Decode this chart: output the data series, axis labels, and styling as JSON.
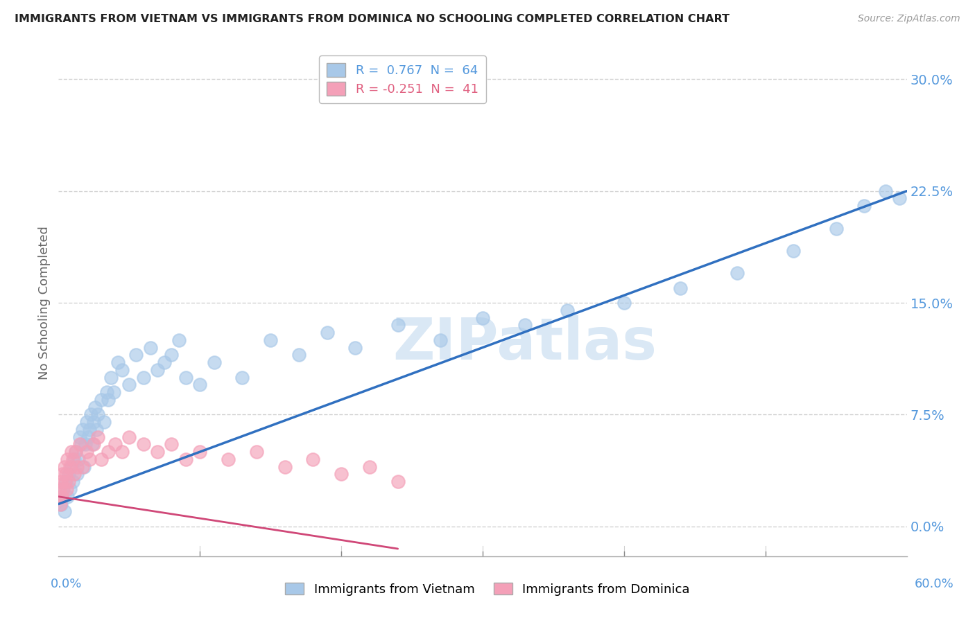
{
  "title": "IMMIGRANTS FROM VIETNAM VS IMMIGRANTS FROM DOMINICA NO SCHOOLING COMPLETED CORRELATION CHART",
  "source": "Source: ZipAtlas.com",
  "ylabel": "No Schooling Completed",
  "ytick_vals": [
    0.0,
    7.5,
    15.0,
    22.5,
    30.0
  ],
  "ytick_labels": [
    "0.0%",
    "7.5%",
    "15.0%",
    "22.5%",
    "30.0%"
  ],
  "xlim": [
    0.0,
    60.0
  ],
  "ylim": [
    -2.0,
    32.0
  ],
  "legend1_r": " 0.767",
  "legend1_n": " 64",
  "legend2_r": "-0.251",
  "legend2_n": " 41",
  "blue_color": "#a8c8e8",
  "pink_color": "#f4a0b8",
  "blue_line_color": "#3070c0",
  "pink_line_color": "#d04878",
  "watermark": "ZIPatlas",
  "watermark_color": "#dae8f5",
  "background_color": "#ffffff",
  "grid_color": "#cccccc",
  "vietnam_x": [
    0.2,
    0.3,
    0.4,
    0.5,
    0.6,
    0.7,
    0.8,
    0.9,
    1.0,
    1.1,
    1.2,
    1.3,
    1.4,
    1.5,
    1.6,
    1.7,
    1.8,
    1.9,
    2.0,
    2.1,
    2.2,
    2.3,
    2.4,
    2.5,
    2.6,
    2.7,
    2.8,
    3.0,
    3.2,
    3.4,
    3.5,
    3.7,
    3.9,
    4.2,
    4.5,
    5.0,
    5.5,
    6.0,
    6.5,
    7.0,
    7.5,
    8.0,
    8.5,
    9.0,
    10.0,
    11.0,
    13.0,
    15.0,
    17.0,
    19.0,
    21.0,
    24.0,
    27.0,
    30.0,
    33.0,
    36.0,
    40.0,
    44.0,
    48.0,
    52.0,
    55.0,
    57.0,
    58.5,
    59.5
  ],
  "vietnam_y": [
    1.5,
    2.5,
    1.0,
    3.0,
    2.0,
    3.5,
    2.5,
    4.0,
    3.0,
    4.5,
    5.0,
    3.5,
    4.5,
    6.0,
    5.5,
    6.5,
    4.0,
    5.5,
    7.0,
    6.0,
    6.5,
    7.5,
    5.5,
    7.0,
    8.0,
    6.5,
    7.5,
    8.5,
    7.0,
    9.0,
    8.5,
    10.0,
    9.0,
    11.0,
    10.5,
    9.5,
    11.5,
    10.0,
    12.0,
    10.5,
    11.0,
    11.5,
    12.5,
    10.0,
    9.5,
    11.0,
    10.0,
    12.5,
    11.5,
    13.0,
    12.0,
    13.5,
    12.5,
    14.0,
    13.5,
    14.5,
    15.0,
    16.0,
    17.0,
    18.5,
    20.0,
    21.5,
    22.5,
    22.0
  ],
  "dominica_x": [
    0.1,
    0.15,
    0.2,
    0.25,
    0.3,
    0.35,
    0.4,
    0.45,
    0.5,
    0.55,
    0.6,
    0.7,
    0.8,
    0.9,
    1.0,
    1.1,
    1.2,
    1.3,
    1.5,
    1.7,
    2.0,
    2.2,
    2.5,
    2.8,
    3.0,
    3.5,
    4.0,
    4.5,
    5.0,
    6.0,
    7.0,
    8.0,
    9.0,
    10.0,
    12.0,
    14.0,
    16.0,
    18.0,
    20.0,
    22.0,
    24.0
  ],
  "dominica_y": [
    2.5,
    1.5,
    3.0,
    2.0,
    3.5,
    2.5,
    4.0,
    3.0,
    3.5,
    2.5,
    4.5,
    3.0,
    4.0,
    5.0,
    4.5,
    3.5,
    5.0,
    4.0,
    5.5,
    4.0,
    5.0,
    4.5,
    5.5,
    6.0,
    4.5,
    5.0,
    5.5,
    5.0,
    6.0,
    5.5,
    5.0,
    5.5,
    4.5,
    5.0,
    4.5,
    5.0,
    4.0,
    4.5,
    3.5,
    4.0,
    3.0
  ],
  "vn_line_x0": 0.0,
  "vn_line_x1": 60.0,
  "vn_line_y0": 1.5,
  "vn_line_y1": 22.5,
  "dom_line_x0": 0.0,
  "dom_line_x1": 24.0,
  "dom_line_y0": 2.0,
  "dom_line_y1": -1.5
}
